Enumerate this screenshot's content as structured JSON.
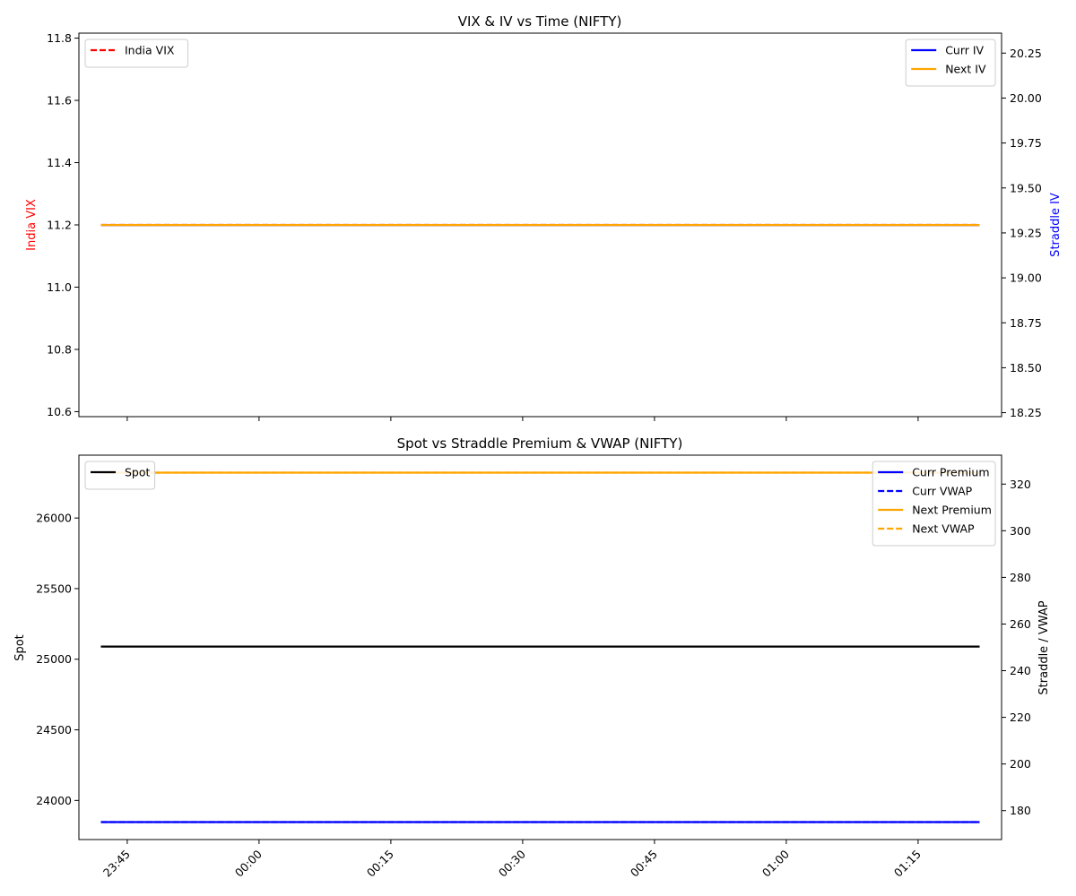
{
  "chart_data": [
    {
      "type": "line",
      "title": "VIX & IV vs Time (NIFTY)",
      "xlabel": "",
      "ylabel_left": "India VIX",
      "ylabel_right": "Straddle IV",
      "ylabel_left_color": "#ff0000",
      "ylabel_right_color": "#0000ff",
      "x_range": [
        "23:42",
        "01:22"
      ],
      "x_ticks": [
        "23:45",
        "00:00",
        "00:15",
        "00:30",
        "00:45",
        "01:00",
        "01:15"
      ],
      "x_tick_labels_visible": false,
      "ylim_left": [
        10.584,
        11.816
      ],
      "yticks_left": [
        "10.6",
        "10.8",
        "11.0",
        "11.2",
        "11.4",
        "11.6",
        "11.8"
      ],
      "ylim_right": [
        18.228,
        20.361
      ],
      "yticks_right": [
        "18.25",
        "18.50",
        "18.75",
        "19.00",
        "19.25",
        "19.50",
        "19.75",
        "20.00",
        "20.25"
      ],
      "legend_left": {
        "placement": "upper-left",
        "entries": [
          "India VIX"
        ]
      },
      "legend_right": {
        "placement": "upper-right",
        "entries": [
          "Curr IV",
          "Next IV"
        ]
      },
      "series": [
        {
          "name": "India VIX",
          "axis": "left",
          "color": "#ff0000",
          "style": "dashed",
          "x": [
            "23:42",
            "01:22"
          ],
          "values": [
            11.2,
            11.2
          ]
        },
        {
          "name": "Curr IV",
          "axis": "right",
          "color": "#0000ff",
          "style": "solid",
          "x": [
            "23:42",
            "01:22"
          ],
          "values": [
            19.294,
            19.294
          ]
        },
        {
          "name": "Next IV",
          "axis": "right",
          "color": "#ffa500",
          "style": "solid",
          "x": [
            "23:42",
            "01:22"
          ],
          "values": [
            19.294,
            19.294
          ]
        }
      ]
    },
    {
      "type": "line",
      "title": "Spot vs Straddle Premium & VWAP (NIFTY)",
      "xlabel": "",
      "ylabel_left": "Spot",
      "ylabel_right": "Straddle / VWAP",
      "x_range": [
        "23:42",
        "01:22"
      ],
      "x_ticks": [
        "23:45",
        "00:00",
        "00:15",
        "00:30",
        "00:45",
        "01:00",
        "01:15"
      ],
      "x_tick_labels_visible": true,
      "ylim_left": [
        23723,
        26445
      ],
      "yticks_left": [
        "24000",
        "24500",
        "25000",
        "25500",
        "26000"
      ],
      "ylim_right": [
        167.6,
        332.4
      ],
      "yticks_right": [
        "180",
        "200",
        "220",
        "240",
        "260",
        "280",
        "300",
        "320"
      ],
      "legend_left": {
        "placement": "upper-left",
        "entries": [
          "Spot"
        ]
      },
      "legend_right": {
        "placement": "upper-right",
        "entries": [
          "Curr Premium",
          "Curr VWAP",
          "Next Premium",
          "Next VWAP"
        ]
      },
      "series": [
        {
          "name": "Spot",
          "axis": "left",
          "color": "#000000",
          "style": "solid",
          "x": [
            "23:42",
            "01:22"
          ],
          "values": [
            25090,
            25090
          ]
        },
        {
          "name": "Curr Premium",
          "axis": "right",
          "color": "#0000ff",
          "style": "solid",
          "x": [
            "23:42",
            "01:22"
          ],
          "values": [
            175.1,
            175.1
          ]
        },
        {
          "name": "Curr VWAP",
          "axis": "right",
          "color": "#0000ff",
          "style": "dashed",
          "x": [
            "23:42",
            "01:22"
          ],
          "values": [
            175.1,
            175.1
          ]
        },
        {
          "name": "Next Premium",
          "axis": "right",
          "color": "#ffa500",
          "style": "solid",
          "x": [
            "23:42",
            "01:22"
          ],
          "values": [
            324.9,
            324.9
          ]
        },
        {
          "name": "Next VWAP",
          "axis": "right",
          "color": "#ffa500",
          "style": "dashed",
          "x": [
            "23:42",
            "01:22"
          ],
          "values": [
            324.9,
            324.9
          ]
        }
      ]
    }
  ]
}
